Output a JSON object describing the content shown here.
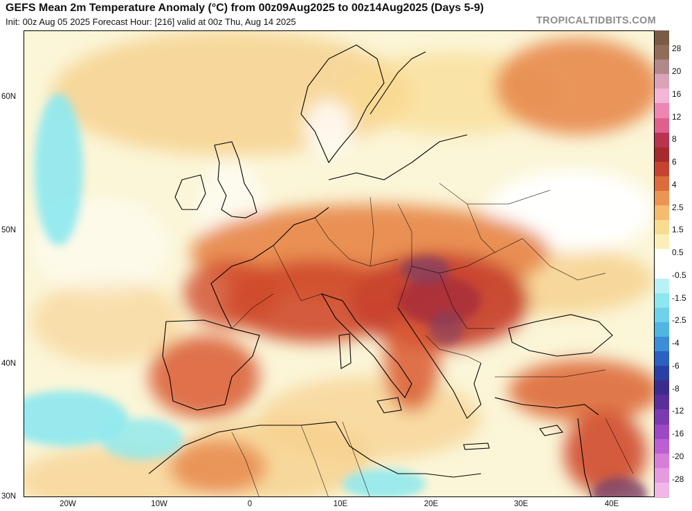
{
  "header": {
    "title": "GEFS Mean 2m Temperature Anomaly (°C) from 00z09Aug2025 to 00z14Aug2025 (Days 5-9)",
    "subtitle": "Init: 00z Aug 05 2025   Forecast Hour: [216]   valid at 00z Thu, Aug 14 2025",
    "credit": "TROPICALTIDBITS.COM"
  },
  "map": {
    "lat_labels": [
      "60N",
      "50N",
      "40N",
      "30N"
    ],
    "lon_labels": [
      "20W",
      "10W",
      "0",
      "10E",
      "20E",
      "30E",
      "40E"
    ],
    "colors": {
      "ocean_neutral": "#fbf6d8",
      "warm_light": "#f6cf8c",
      "warm_medium": "#e88a4e",
      "warm_strong": "#cf4a2c",
      "warm_peak": "#a8303a",
      "purple_max": "#7a3f66",
      "cool_light": "#8ce8ef",
      "white_neutral": "#ffffff",
      "coast": "#000000"
    }
  },
  "colorbar": {
    "labels": [
      "28",
      "20",
      "16",
      "12",
      "8",
      "6",
      "4",
      "2.5",
      "1.5",
      "0.5",
      "-0.5",
      "-1.5",
      "-2.5",
      "-4",
      "-6",
      "-8",
      "-12",
      "-16",
      "-20",
      "-28"
    ],
    "colors": [
      "#7a5b45",
      "#8f6d58",
      "#b1888c",
      "#d9a3b8",
      "#f4b6d6",
      "#ee85b2",
      "#df5f8d",
      "#b8344e",
      "#a52a2a",
      "#c8432f",
      "#dd6c3c",
      "#ec9552",
      "#f5bb6e",
      "#f9dc92",
      "#fbefb8",
      "#ffffff",
      "#ffffff",
      "#b9f2f5",
      "#8ce8ef",
      "#6fd2ea",
      "#4fb5e3",
      "#3a8dd6",
      "#2a61c2",
      "#2a3fa5",
      "#3d2b8c",
      "#5a2d9c",
      "#7a3ab2",
      "#9b49c4",
      "#bc5fd2",
      "#d77ed9",
      "#e69be0",
      "#f0b8e6"
    ]
  }
}
